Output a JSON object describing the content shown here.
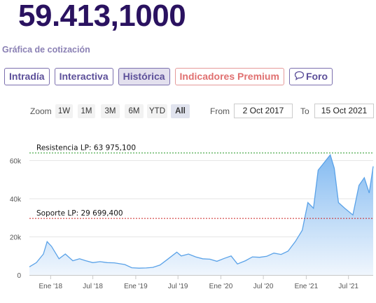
{
  "header": {
    "price": "59.413,1000",
    "subtitle": "Gráfica de cotización"
  },
  "tabs": [
    {
      "label": "Intradía",
      "active": false
    },
    {
      "label": "Interactiva",
      "active": false
    },
    {
      "label": "Histórica",
      "active": true
    },
    {
      "label": "Indicadores Premium",
      "active": false
    },
    {
      "label": "Foro",
      "icon": "speech-bubble-icon",
      "active": false
    }
  ],
  "range_selector": {
    "zoom_label": "Zoom",
    "buttons": [
      "1W",
      "1M",
      "3M",
      "6M",
      "YTD",
      "All"
    ],
    "selected": "All",
    "from_label": "From",
    "from_value": "2 Oct 2017",
    "to_label": "To",
    "to_value": "15 Oct 2021"
  },
  "colors": {
    "line": "#5aa2e8",
    "area_top": "#7db7f0",
    "area_bottom": "#eef5fd",
    "resistance": "#2a9a2a",
    "support": "#cc2222",
    "price_text": "#2a1260"
  },
  "chart_data": {
    "type": "area",
    "title": "",
    "xlabel": "",
    "ylabel": "",
    "ylim": [
      0,
      70000
    ],
    "x_ticks": [
      "Ene '18",
      "Jul '18",
      "Ene '19",
      "Jul '19",
      "Ene '20",
      "Jul '20",
      "Ene '21",
      "Jul '21"
    ],
    "y_ticks": [
      "0",
      "20k",
      "40k",
      "60k"
    ],
    "annotations": [
      {
        "label": "Resistencia LP: 63 975,100",
        "value": 63975.1
      },
      {
        "label": "Soporte LP: 29 699,400",
        "value": 29699.4
      }
    ],
    "series": [
      {
        "x": [
          "2017-10-02",
          "2017-11-01",
          "2017-12-01",
          "2017-12-17",
          "2018-01-05",
          "2018-02-06",
          "2018-03-05",
          "2018-04-06",
          "2018-05-05",
          "2018-06-01",
          "2018-07-01",
          "2018-08-01",
          "2018-09-01",
          "2018-10-01",
          "2018-11-15",
          "2018-12-15",
          "2019-01-15",
          "2019-02-15",
          "2019-03-15",
          "2019-04-15",
          "2019-05-15",
          "2019-06-26",
          "2019-07-15",
          "2019-08-15",
          "2019-09-15",
          "2019-10-15",
          "2019-11-15",
          "2019-12-15",
          "2020-01-15",
          "2020-02-14",
          "2020-03-12",
          "2020-04-15",
          "2020-05-15",
          "2020-06-15",
          "2020-07-15",
          "2020-08-15",
          "2020-09-15",
          "2020-10-15",
          "2020-11-15",
          "2020-12-15",
          "2021-01-08",
          "2021-02-01",
          "2021-02-21",
          "2021-03-13",
          "2021-04-14",
          "2021-05-01",
          "2021-05-19",
          "2021-06-15",
          "2021-07-20",
          "2021-08-15",
          "2021-09-07",
          "2021-09-28",
          "2021-10-15"
        ],
        "values": [
          4300,
          6500,
          11000,
          17500,
          15000,
          8500,
          11000,
          7500,
          8500,
          7500,
          6500,
          7000,
          6500,
          6400,
          5500,
          3800,
          3600,
          3700,
          4000,
          5200,
          8000,
          12000,
          10000,
          11000,
          9500,
          8500,
          8300,
          7200,
          8700,
          10000,
          5800,
          7500,
          9500,
          9300,
          9800,
          11500,
          10800,
          12500,
          17500,
          23500,
          38000,
          35000,
          55000,
          58000,
          63000,
          56000,
          38000,
          35000,
          31500,
          47000,
          51000,
          43000,
          57000
        ]
      }
    ]
  }
}
